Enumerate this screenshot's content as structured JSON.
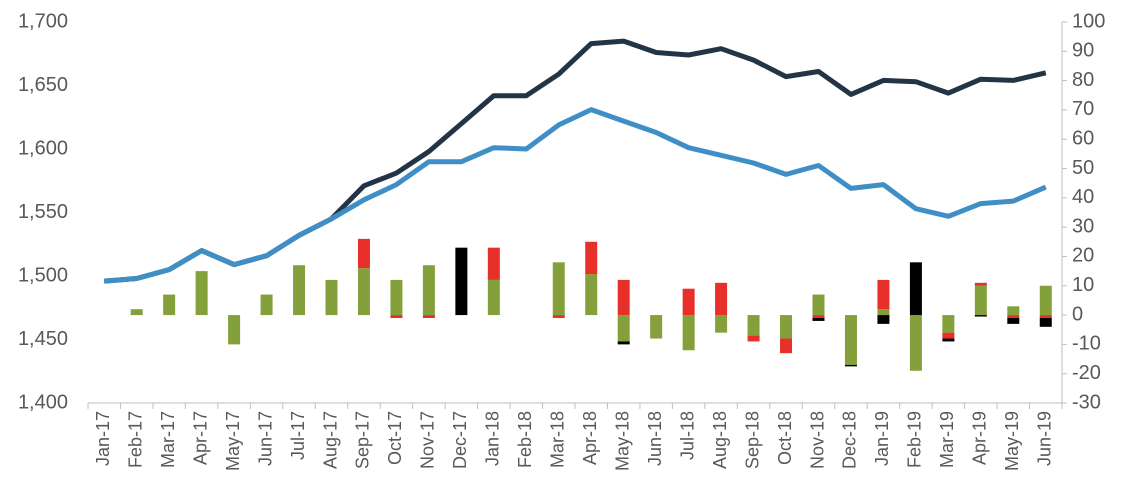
{
  "chart_data": {
    "type": "line-bar",
    "categories": [
      "Jan-17",
      "Feb-17",
      "Mar-17",
      "Apr-17",
      "May-17",
      "Jun-17",
      "Jul-17",
      "Aug-17",
      "Sep-17",
      "Oct-17",
      "Nov-17",
      "Dec-17",
      "Jan-18",
      "Feb-18",
      "Mar-18",
      "Apr-18",
      "May-18",
      "Jun-18",
      "Jul-18",
      "Aug-18",
      "Sep-18",
      "Oct-18",
      "Nov-18",
      "Dec-18",
      "Jan-19",
      "Feb-19",
      "Mar-19",
      "Apr-19",
      "May-19",
      "Jun-19"
    ],
    "series": [
      {
        "type": "line",
        "color": "#243447",
        "values": [
          1496,
          1498,
          1505,
          1520,
          1509,
          1516,
          1532,
          1545,
          1571,
          1581,
          1598,
          1620,
          1642,
          1642,
          1659,
          1683,
          1685,
          1676,
          1674,
          1679,
          1670,
          1657,
          1661,
          1643,
          1654,
          1653,
          1644,
          1655,
          1654,
          1660
        ]
      },
      {
        "type": "line",
        "color": "#3f8fc6",
        "values": [
          1496,
          1498,
          1505,
          1520,
          1509,
          1516,
          1532,
          1545,
          1560,
          1572,
          1590,
          1590,
          1601,
          1600,
          1619,
          1631,
          1622,
          1613,
          1601,
          1595,
          1589,
          1580,
          1587,
          1569,
          1572,
          1553,
          1547,
          1557,
          1559,
          1570
        ]
      },
      {
        "type": "bar",
        "axis": "y2",
        "color": "#84a03a",
        "values": [
          0,
          2,
          7,
          15,
          -10,
          7,
          17,
          12,
          16,
          12,
          17,
          0,
          12,
          0,
          18,
          14,
          -9,
          -8,
          -12,
          -6,
          -7,
          -8,
          7,
          -17,
          2,
          -19,
          -6,
          10,
          3,
          10
        ]
      },
      {
        "type": "bar",
        "axis": "y2",
        "color": "#e8302a",
        "values": [
          0,
          0,
          0,
          0,
          0,
          0,
          0,
          0,
          10,
          -1,
          -1,
          0,
          11,
          0,
          -1,
          11,
          12,
          0,
          9,
          11,
          -2,
          -5,
          -1,
          0,
          10,
          0,
          -2,
          1,
          -1,
          -1
        ]
      },
      {
        "type": "bar",
        "axis": "y2",
        "color": "#000000",
        "values": [
          0,
          0,
          0,
          0,
          0,
          0,
          0,
          0,
          0,
          0,
          0,
          23,
          0,
          0,
          0,
          0,
          -1,
          0,
          0,
          0,
          0,
          0,
          -1,
          -0.5,
          -3,
          18,
          -1,
          -0.5,
          -2,
          -3
        ]
      }
    ],
    "ylim": [
      1400,
      1700
    ],
    "yticks": [
      {
        "value": 1400,
        "label": "1,400"
      },
      {
        "value": 1450,
        "label": "1,450"
      },
      {
        "value": 1500,
        "label": "1,500"
      },
      {
        "value": 1550,
        "label": "1,550"
      },
      {
        "value": 1600,
        "label": "1,600"
      },
      {
        "value": 1650,
        "label": "1,650"
      },
      {
        "value": 1700,
        "label": "1,700"
      }
    ],
    "y2lim": [
      -30,
      100
    ],
    "y2ticks": [
      -30,
      -20,
      -10,
      0,
      10,
      20,
      30,
      40,
      50,
      60,
      70,
      80,
      90,
      100
    ],
    "grid": false
  }
}
